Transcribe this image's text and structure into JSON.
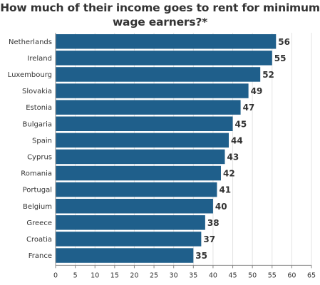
{
  "chart_data": {
    "type": "bar",
    "orientation": "horizontal",
    "title_line1": "How much of their income goes to rent for minimum",
    "title_line2": "wage earners?*",
    "categories": [
      "Netherlands",
      "Ireland",
      "Luxembourg",
      "Slovakia",
      "Estonia",
      "Bulgaria",
      "Spain",
      "Cyprus",
      "Romania",
      "Portugal",
      "Belgium",
      "Greece",
      "Croatia",
      "France"
    ],
    "values": [
      56,
      55,
      52,
      49,
      47,
      45,
      44,
      43,
      42,
      41,
      40,
      38,
      37,
      35
    ],
    "xlabel": "",
    "ylabel": "",
    "xlim": [
      0,
      65
    ],
    "xticks": [
      0,
      5,
      10,
      15,
      20,
      25,
      30,
      35,
      40,
      45,
      50,
      55,
      60,
      65
    ],
    "grid": true,
    "bar_color": "#1f5f8b",
    "data_labels": true
  }
}
